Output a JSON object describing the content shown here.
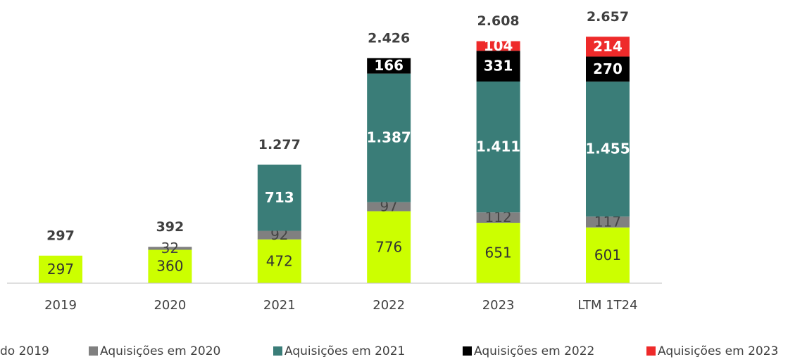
{
  "chart_data": {
    "type": "stacked_bar",
    "categories": [
      "2019",
      "2020",
      "2021",
      "2022",
      "2023",
      "LTM 1T24"
    ],
    "series": [
      {
        "name": "do 2019",
        "color": "#ccff00",
        "label_color": "#333333",
        "values": [
          297,
          360,
          472,
          776,
          651,
          601
        ]
      },
      {
        "name": "Aquisições em 2020",
        "color": "#808080",
        "label_color": "#444444",
        "values": [
          null,
          32,
          92,
          97,
          112,
          117
        ]
      },
      {
        "name": "Aquisições em 2021",
        "color": "#3a7d78",
        "label_color": "#ffffff",
        "values": [
          null,
          null,
          713,
          1387,
          1411,
          1455
        ],
        "value_labels": [
          null,
          null,
          "713",
          "1.387",
          "1.411",
          "1.455"
        ]
      },
      {
        "name": "Aquisições em 2022",
        "color": "#000000",
        "label_color": "#ffffff",
        "values": [
          null,
          null,
          null,
          166,
          331,
          270
        ]
      },
      {
        "name": "Aquisições em 2023",
        "color": "#ee2a2a",
        "label_color": "#ffffff",
        "values": [
          null,
          null,
          null,
          null,
          104,
          214
        ]
      }
    ],
    "totals": {
      "values": [
        297,
        392,
        1277,
        2426,
        2608,
        2657
      ],
      "value_labels": [
        "297",
        "392",
        "1.277",
        "2.426",
        "2.608",
        "2.657"
      ]
    },
    "ylim": [
      0,
      3053
    ]
  }
}
